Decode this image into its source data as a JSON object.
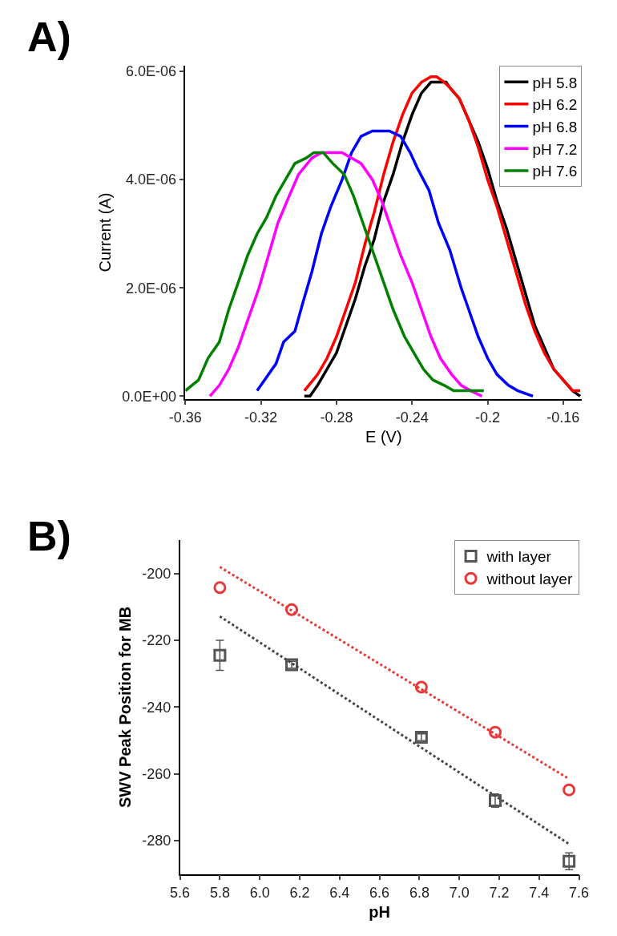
{
  "chart_data": [
    {
      "type": "line",
      "title": "A)",
      "xlabel": "E (V)",
      "ylabel": "Current (A)",
      "xlim": [
        -0.36,
        -0.15
      ],
      "xticks": [
        -0.36,
        -0.32,
        -0.28,
        -0.24,
        -0.2,
        -0.16
      ],
      "ylim": [
        -5e-08,
        6.1e-06
      ],
      "yticks": [
        {
          "value": 0,
          "label": "0.0E+00"
        },
        {
          "value": 2e-06,
          "label": "2.0E-06"
        },
        {
          "value": 4e-06,
          "label": "4.0E-06"
        },
        {
          "value": 6e-06,
          "label": "6.0E-06"
        }
      ],
      "legend": "top right",
      "marker": "none",
      "line_style": "solid",
      "series": [
        {
          "name": "pH 5.8",
          "color": "#000000",
          "x": [
            -0.297,
            -0.294,
            -0.29,
            -0.285,
            -0.28,
            -0.275,
            -0.27,
            -0.265,
            -0.26,
            -0.255,
            -0.25,
            -0.245,
            -0.24,
            -0.235,
            -0.23,
            -0.225,
            -0.222,
            -0.22,
            -0.215,
            -0.21,
            -0.205,
            -0.2,
            -0.195,
            -0.19,
            -0.185,
            -0.18,
            -0.175,
            -0.17,
            -0.165,
            -0.16,
            -0.155,
            -0.151
          ],
          "values": [
            0.0,
            0.0,
            2e-07,
            5e-07,
            8e-07,
            1.3e-06,
            1.8e-06,
            2.4e-06,
            2.9e-06,
            3.6e-06,
            4.1e-06,
            4.7e-06,
            5.2e-06,
            5.6e-06,
            5.8e-06,
            5.8e-06,
            5.8e-06,
            5.7e-06,
            5.5e-06,
            5.1e-06,
            4.7e-06,
            4.2e-06,
            3.6e-06,
            3.1e-06,
            2.5e-06,
            1.9e-06,
            1.3e-06,
            9e-07,
            5e-07,
            3e-07,
            1e-07,
            0.0
          ]
        },
        {
          "name": "pH 6.2",
          "color": "#ff0000",
          "x": [
            -0.297,
            -0.29,
            -0.285,
            -0.28,
            -0.275,
            -0.27,
            -0.265,
            -0.26,
            -0.255,
            -0.25,
            -0.245,
            -0.24,
            -0.235,
            -0.23,
            -0.227,
            -0.223,
            -0.22,
            -0.215,
            -0.21,
            -0.205,
            -0.2,
            -0.195,
            -0.19,
            -0.185,
            -0.18,
            -0.175,
            -0.17,
            -0.165,
            -0.16,
            -0.155,
            -0.151
          ],
          "values": [
            1e-07,
            4e-07,
            7e-07,
            1.1e-06,
            1.6e-06,
            2.1e-06,
            2.8e-06,
            3.4e-06,
            4.1e-06,
            4.7e-06,
            5.2e-06,
            5.6e-06,
            5.8e-06,
            5.9e-06,
            5.9e-06,
            5.8e-06,
            5.7e-06,
            5.5e-06,
            5.1e-06,
            4.6e-06,
            4e-06,
            3.5e-06,
            2.9e-06,
            2.3e-06,
            1.7e-06,
            1.2e-06,
            8e-07,
            5e-07,
            3e-07,
            1e-07,
            1e-07
          ]
        },
        {
          "name": "pH 6.8",
          "color": "#0000ff",
          "x": [
            -0.322,
            -0.318,
            -0.312,
            -0.308,
            -0.302,
            -0.298,
            -0.293,
            -0.288,
            -0.283,
            -0.277,
            -0.272,
            -0.267,
            -0.261,
            -0.257,
            -0.252,
            -0.246,
            -0.241,
            -0.237,
            -0.231,
            -0.226,
            -0.22,
            -0.214,
            -0.21,
            -0.205,
            -0.2,
            -0.195,
            -0.189,
            -0.184,
            -0.176
          ],
          "values": [
            1e-07,
            3e-07,
            6e-07,
            1e-06,
            1.2e-06,
            1.7e-06,
            2.3e-06,
            3e-06,
            3.5e-06,
            4e-06,
            4.5e-06,
            4.8e-06,
            4.9e-06,
            4.9e-06,
            4.9e-06,
            4.8e-06,
            4.5e-06,
            4.2e-06,
            3.8e-06,
            3.2e-06,
            2.7e-06,
            2e-06,
            1.6e-06,
            1.1e-06,
            7e-07,
            4e-07,
            2e-07,
            1e-07,
            0.0
          ]
        },
        {
          "name": "pH 7.2",
          "color": "#ff00ff",
          "x": [
            -0.347,
            -0.342,
            -0.337,
            -0.332,
            -0.327,
            -0.321,
            -0.316,
            -0.311,
            -0.305,
            -0.3,
            -0.293,
            -0.288,
            -0.282,
            -0.277,
            -0.272,
            -0.267,
            -0.261,
            -0.256,
            -0.251,
            -0.246,
            -0.24,
            -0.235,
            -0.23,
            -0.225,
            -0.219,
            -0.214,
            -0.209,
            -0.203
          ],
          "values": [
            0.0,
            2e-07,
            5e-07,
            9e-07,
            1.4e-06,
            2e-06,
            2.6e-06,
            3.2e-06,
            3.7e-06,
            4.1e-06,
            4.4e-06,
            4.5e-06,
            4.5e-06,
            4.5e-06,
            4.4e-06,
            4.3e-06,
            4e-06,
            3.6e-06,
            3.1e-06,
            2.6e-06,
            2.1e-06,
            1.6e-06,
            1.1e-06,
            7e-07,
            4e-07,
            2e-07,
            1e-07,
            0.0
          ]
        },
        {
          "name": "pH 7.6",
          "color": "#008000",
          "x": [
            -0.36,
            -0.353,
            -0.348,
            -0.342,
            -0.337,
            -0.332,
            -0.327,
            -0.322,
            -0.317,
            -0.312,
            -0.307,
            -0.302,
            -0.296,
            -0.292,
            -0.287,
            -0.282,
            -0.276,
            -0.271,
            -0.266,
            -0.26,
            -0.255,
            -0.25,
            -0.244,
            -0.239,
            -0.234,
            -0.229,
            -0.223,
            -0.218,
            -0.212,
            -0.207,
            -0.202
          ],
          "values": [
            1e-07,
            3e-07,
            7e-07,
            1e-06,
            1.6e-06,
            2.1e-06,
            2.6e-06,
            3e-06,
            3.3e-06,
            3.7e-06,
            4e-06,
            4.3e-06,
            4.4e-06,
            4.5e-06,
            4.5e-06,
            4.3e-06,
            4.1e-06,
            3.7e-06,
            3.2e-06,
            2.6e-06,
            2.1e-06,
            1.6e-06,
            1.1e-06,
            8e-07,
            5e-07,
            3e-07,
            2e-07,
            1e-07,
            1e-07,
            1e-07,
            1e-07
          ]
        }
      ]
    },
    {
      "type": "scatter",
      "title": "B)",
      "xlabel": "pH",
      "ylabel": "SWV Peak Position for MB",
      "xlim": [
        5.6,
        7.6
      ],
      "xticks": [
        5.6,
        5.8,
        {
          "value": 6.0,
          "label": "6.0"
        },
        6.2,
        6.4,
        6.6,
        6.8,
        {
          "value": 7.0,
          "label": "7.0"
        },
        7.2,
        7.4,
        7.6
      ],
      "ylim": [
        -290,
        -190
      ],
      "yticks": [
        -280,
        -260,
        -240,
        -220,
        -200
      ],
      "legend": "top right",
      "series": [
        {
          "name": "with layer",
          "color": "#555555",
          "marker": "square",
          "x": [
            5.8,
            6.16,
            6.81,
            7.18,
            7.55
          ],
          "values": [
            -224.5,
            -227.3,
            -249,
            -268,
            -286.2
          ],
          "errors": [
            4.5,
            1,
            1,
            2,
            2.5
          ]
        },
        {
          "name": "without layer",
          "color": "#e8393a",
          "marker": "circle",
          "x": [
            5.8,
            6.16,
            6.81,
            7.18,
            7.55
          ],
          "values": [
            -204.2,
            -210.8,
            -234,
            -247.5,
            -264.8
          ]
        },
        {
          "type": "line",
          "color": "#444444",
          "line_style": "dotted",
          "marker": "none",
          "x": [
            5.8,
            7.55
          ],
          "values": [
            -212.8,
            -281
          ]
        },
        {
          "type": "line",
          "color": "#e53935",
          "line_style": "dotted",
          "marker": "none",
          "x": [
            5.8,
            7.55
          ],
          "values": [
            -198,
            -261.5
          ]
        }
      ]
    }
  ]
}
